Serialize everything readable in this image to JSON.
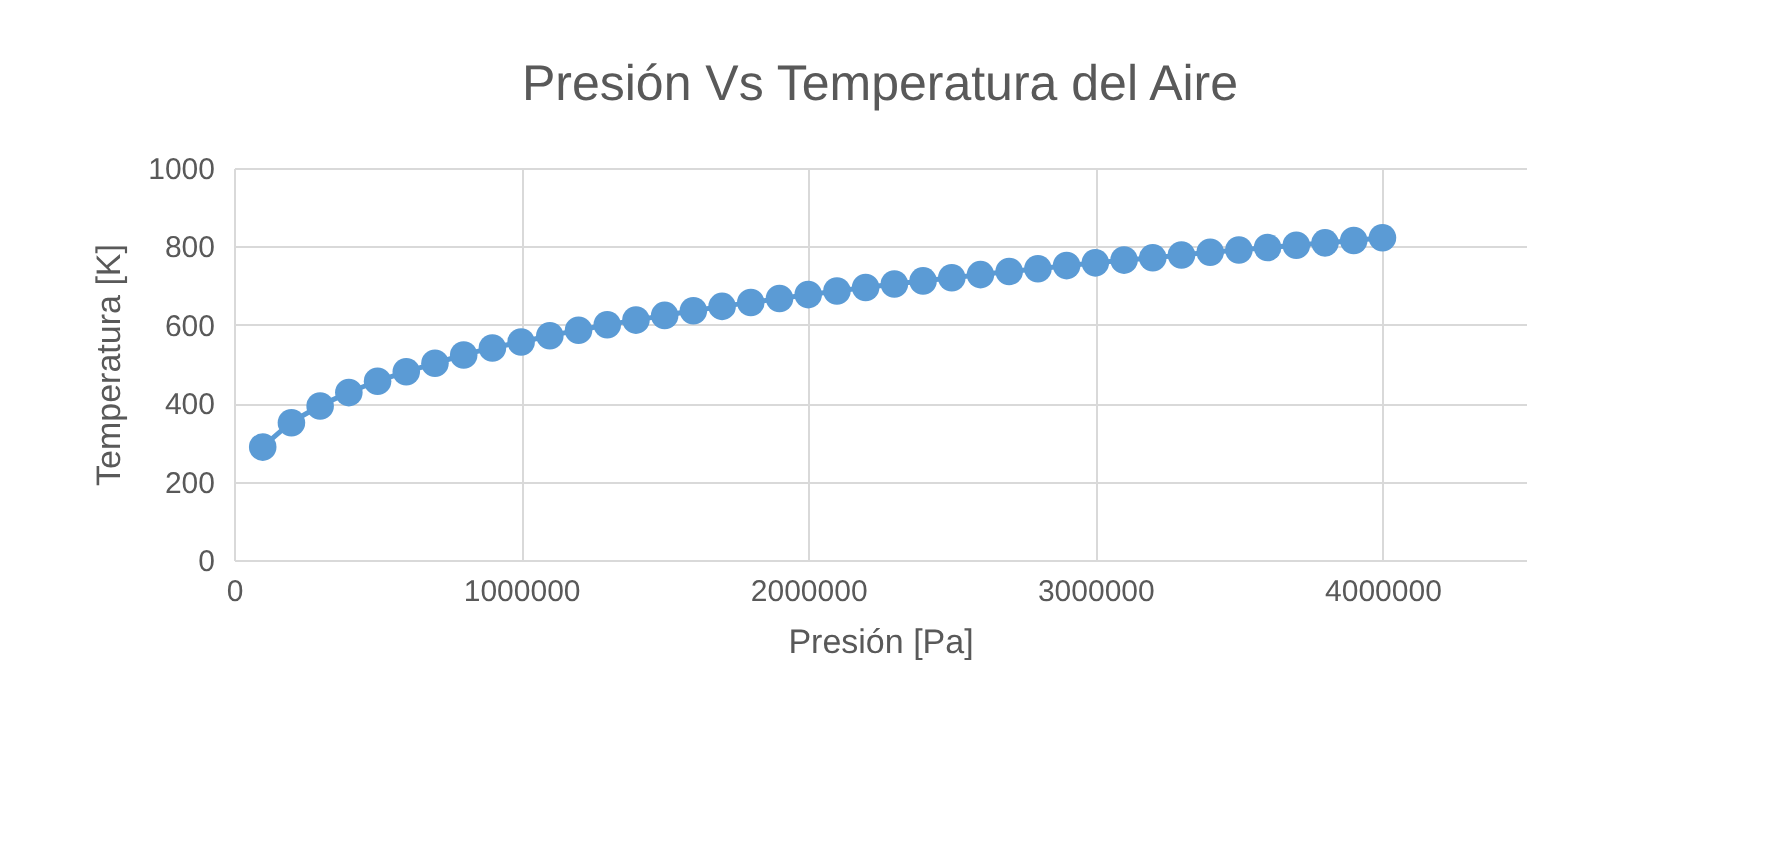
{
  "chart_data": {
    "type": "line",
    "title": "Presión Vs Temperatura del Aire",
    "xlabel": "Presión [Pa]",
    "ylabel": "Temperatura [K]",
    "x": [
      100000,
      200000,
      300000,
      400000,
      500000,
      600000,
      700000,
      800000,
      900000,
      1000000,
      1100000,
      1200000,
      1300000,
      1400000,
      1500000,
      1600000,
      1700000,
      1800000,
      1900000,
      2000000,
      2100000,
      2200000,
      2300000,
      2400000,
      2500000,
      2600000,
      2700000,
      2800000,
      2900000,
      3000000,
      3100000,
      3200000,
      3300000,
      3400000,
      3500000,
      3600000,
      3700000,
      3800000,
      3900000,
      4000000
    ],
    "series": [
      {
        "color": "#5b9bd5",
        "values": [
          288,
          350,
          393,
          427,
          456,
          480,
          502,
          523,
          541,
          556,
          572,
          586,
          600,
          612,
          624,
          636,
          647,
          657,
          667,
          677,
          686,
          695,
          704,
          712,
          720,
          728,
          736,
          743,
          751,
          758,
          765,
          771,
          778,
          785,
          791,
          797,
          803,
          809,
          815,
          822
        ]
      }
    ],
    "xlim": [
      0,
      4500000
    ],
    "xticks": [
      0,
      1000000,
      2000000,
      3000000,
      4000000
    ],
    "ylim": [
      0,
      1000
    ],
    "yticks": [
      0,
      200,
      400,
      600,
      800,
      1000
    ],
    "grid": true,
    "marker": "circle",
    "line_style": "solid"
  }
}
